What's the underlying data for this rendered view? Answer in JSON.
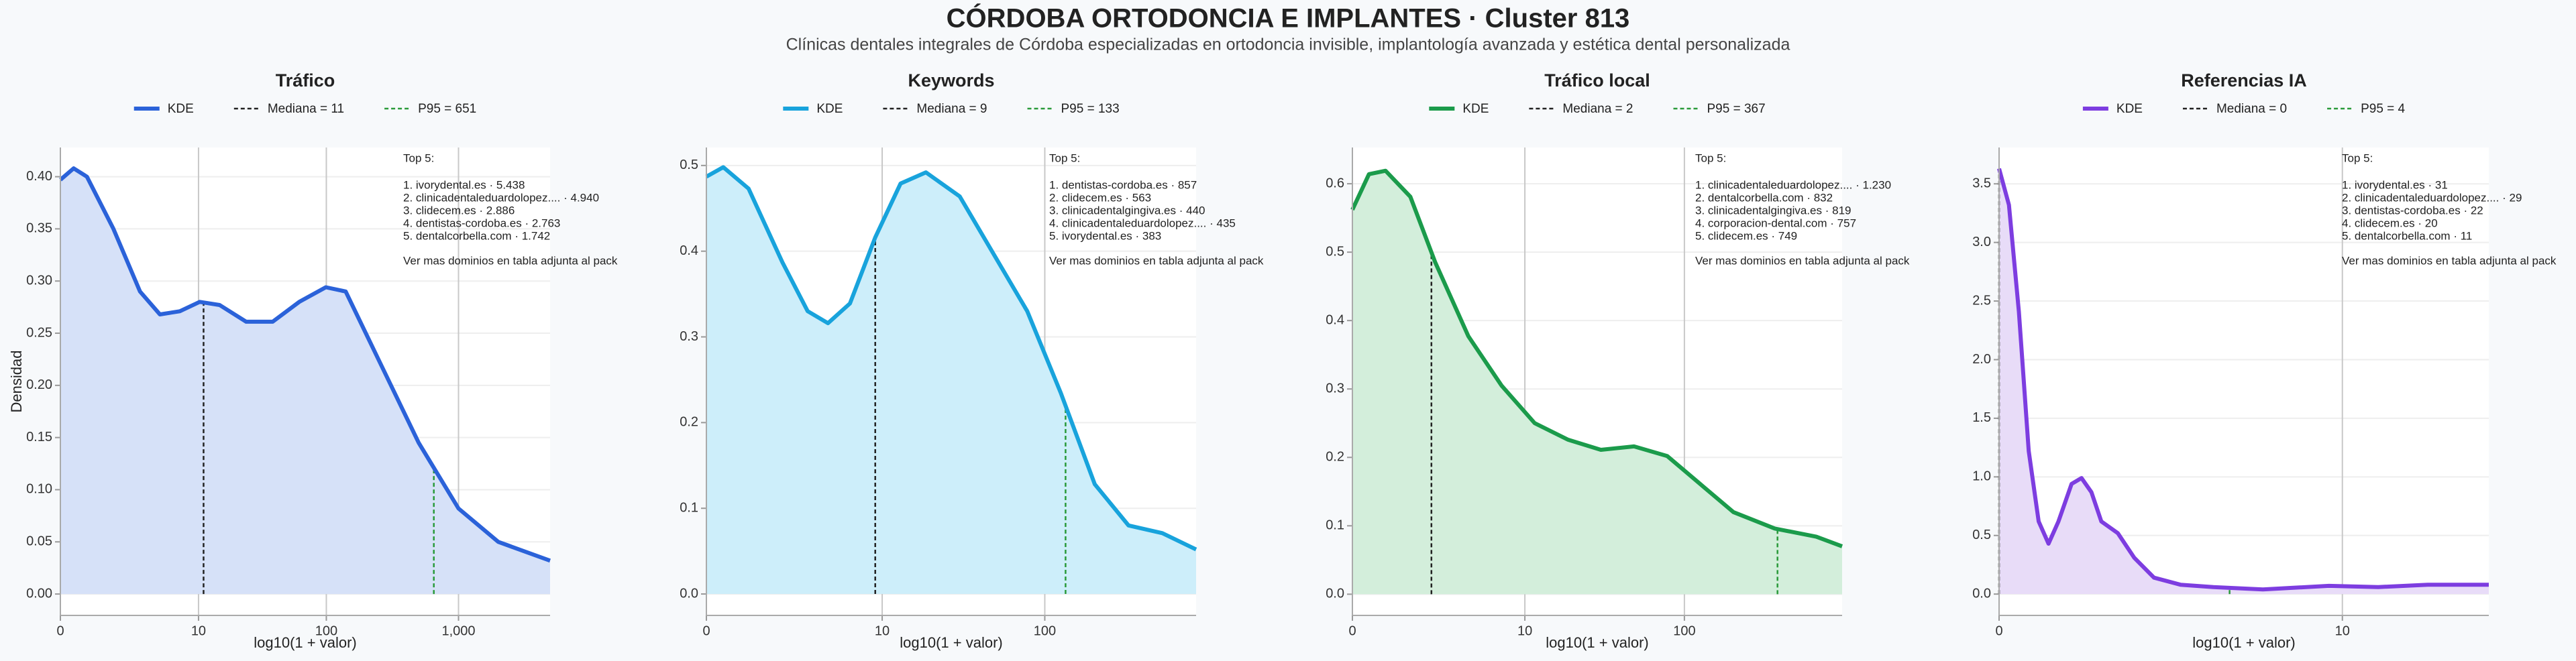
{
  "title": "CÓRDOBA ORTODONCIA E IMPLANTES · Cluster 813",
  "subtitle": "Clínicas dentales integrales de Córdoba especializadas en ortodoncia invisible, implantología avanzada y estética dental personalizada",
  "chart_data": [
    {
      "type": "area",
      "title": "Tráfico",
      "x_label": "log10(1 + valor)",
      "y_label": "Densidad",
      "grid": true,
      "fill_color": "#d6e1f8",
      "x": [
        0,
        0.1,
        0.2,
        0.4,
        0.6,
        0.75,
        0.9,
        1.05,
        1.2,
        1.4,
        1.6,
        1.8,
        2.0,
        2.15,
        2.4,
        2.7,
        3.0,
        3.3,
        3.69
      ],
      "series": [
        {
          "name": "KDE",
          "color": "#2b62d9",
          "values": [
            0.397,
            0.408,
            0.4,
            0.35,
            0.29,
            0.268,
            0.271,
            0.28,
            0.277,
            0.261,
            0.261,
            0.28,
            0.294,
            0.29,
            0.224,
            0.145,
            0.082,
            0.05,
            0.032
          ]
        }
      ],
      "reference_lines": [
        {
          "name": "Mediana = 11",
          "color": "#222222",
          "x": 1.079
        },
        {
          "name": "P95 = 651",
          "color": "#2a9a3a",
          "x": 2.814
        }
      ],
      "xlim": [
        0,
        3.69
      ],
      "ylim": [
        -0.0205,
        0.428
      ],
      "xticks": [
        0,
        {
          "value": 1.041,
          "label": "10"
        },
        {
          "value": 2.004,
          "label": "100"
        },
        {
          "value": 3.0,
          "label": "1,000"
        }
      ],
      "yticks": [
        {
          "value": 0,
          "label": "0.00"
        },
        0.05,
        {
          "value": 0.1,
          "label": "0.10"
        },
        0.15,
        {
          "value": 0.2,
          "label": "0.20"
        },
        0.25,
        {
          "value": 0.3,
          "label": "0.30"
        },
        0.35,
        {
          "value": 0.4,
          "label": "0.40"
        }
      ],
      "annotation": {
        "title": "Top 5:",
        "items": [
          "1. ivorydental.es · 5.438",
          "2. clinicadentaleduardolopez.... · 4.940",
          "3. clidecem.es · 2.886",
          "4. dentistas-cordoba.es · 2.763",
          "5. dentalcorbella.com · 1.742"
        ],
        "note": "Ver mas dominios en tabla adjunta al pack"
      }
    },
    {
      "type": "area",
      "title": "Keywords",
      "x_label": "log10(1 + valor)",
      "grid": true,
      "fill_color": "#cdeefa",
      "x": [
        0,
        0.1,
        0.25,
        0.45,
        0.6,
        0.72,
        0.85,
        1.0,
        1.15,
        1.3,
        1.5,
        1.7,
        1.9,
        2.1,
        2.3,
        2.5,
        2.7,
        2.9
      ],
      "series": [
        {
          "name": "KDE",
          "color": "#18a3dc",
          "values": [
            0.487,
            0.498,
            0.473,
            0.387,
            0.33,
            0.316,
            0.339,
            0.416,
            0.479,
            0.492,
            0.464,
            0.397,
            0.33,
            0.234,
            0.128,
            0.08,
            0.071,
            0.052
          ]
        }
      ],
      "reference_lines": [
        {
          "name": "Mediana = 9",
          "color": "#222222",
          "x": 1.0
        },
        {
          "name": "P95 = 133",
          "color": "#2a9a3a",
          "x": 2.127
        }
      ],
      "xlim": [
        0,
        2.9
      ],
      "ylim": [
        -0.025,
        0.521
      ],
      "xticks": [
        0,
        {
          "value": 1.041,
          "label": "10"
        },
        {
          "value": 2.004,
          "label": "100"
        }
      ],
      "yticks": [
        {
          "value": 0,
          "label": "0.0"
        },
        0.1,
        0.2,
        0.3,
        0.4,
        0.5
      ],
      "annotation": {
        "title": "Top 5:",
        "items": [
          "1. dentistas-cordoba.es · 857",
          "2. clidecem.es · 563",
          "3. clinicadentalgingiva.es · 440",
          "4. clinicadentaleduardolopez.... · 435",
          "5. ivorydental.es · 383"
        ],
        "note": "Ver mas dominios en tabla adjunta al pack"
      }
    },
    {
      "type": "area",
      "title": "Tráfico local",
      "x_label": "log10(1 + valor)",
      "grid": true,
      "fill_color": "#d3eedb",
      "x": [
        0,
        0.1,
        0.2,
        0.35,
        0.5,
        0.7,
        0.9,
        1.1,
        1.3,
        1.5,
        1.7,
        1.9,
        2.1,
        2.3,
        2.55,
        2.8,
        2.956
      ],
      "series": [
        {
          "name": "KDE",
          "color": "#1b9b4b",
          "values": [
            0.562,
            0.614,
            0.619,
            0.581,
            0.485,
            0.377,
            0.305,
            0.25,
            0.226,
            0.211,
            0.216,
            0.202,
            0.161,
            0.12,
            0.096,
            0.084,
            0.07
          ]
        }
      ],
      "reference_lines": [
        {
          "name": "Mediana = 2",
          "color": "#222222",
          "x": 0.477
        },
        {
          "name": "P95 = 367",
          "color": "#2a9a3a",
          "x": 2.566
        }
      ],
      "xlim": [
        0,
        2.956
      ],
      "ylim": [
        -0.031,
        0.653
      ],
      "xticks": [
        0,
        {
          "value": 1.041,
          "label": "10"
        },
        {
          "value": 2.004,
          "label": "100"
        }
      ],
      "yticks": [
        {
          "value": 0,
          "label": "0.0"
        },
        0.1,
        0.2,
        0.3,
        0.4,
        0.5,
        0.6
      ],
      "annotation": {
        "title": "Top 5:",
        "items": [
          "1. clinicadentaleduardolopez.... · 1.230",
          "2. dentalcorbella.com · 832",
          "3. clinicadentalgingiva.es · 819",
          "4. corporacion-dental.com · 757",
          "5. clidecem.es · 749"
        ],
        "note": "Ver mas dominios en tabla adjunta al pack"
      }
    },
    {
      "type": "area",
      "title": "Referencias IA",
      "x_label": "log10(1 + valor)",
      "grid": true,
      "fill_color": "#e8dcf8",
      "x": [
        0,
        0.03,
        0.06,
        0.09,
        0.12,
        0.15,
        0.18,
        0.22,
        0.25,
        0.28,
        0.31,
        0.36,
        0.41,
        0.47,
        0.55,
        0.65,
        0.8,
        1.0,
        1.15,
        1.3,
        1.485
      ],
      "series": [
        {
          "name": "KDE",
          "color": "#7d3de0",
          "values": [
            3.63,
            3.32,
            2.41,
            1.22,
            0.62,
            0.43,
            0.62,
            0.94,
            0.99,
            0.87,
            0.62,
            0.52,
            0.31,
            0.14,
            0.08,
            0.06,
            0.04,
            0.07,
            0.06,
            0.08,
            0.08
          ]
        }
      ],
      "reference_lines": [
        {
          "name": "Mediana = 0",
          "color": "#222222",
          "x": 0
        },
        {
          "name": "P95 = 4",
          "color": "#2a9a3a",
          "x": 0.699
        }
      ],
      "xlim": [
        0,
        1.485
      ],
      "ylim": [
        -0.182,
        3.81
      ],
      "xticks": [
        0,
        {
          "value": 1.041,
          "label": "10"
        }
      ],
      "yticks": [
        {
          "value": 0,
          "label": "0.0"
        },
        0.5,
        {
          "value": 1,
          "label": "1.0"
        },
        1.5,
        {
          "value": 2,
          "label": "2.0"
        },
        2.5,
        {
          "value": 3,
          "label": "3.0"
        },
        3.5
      ],
      "annotation": {
        "title": "Top 5:",
        "items": [
          "1. ivorydental.es · 31",
          "2. clinicadentaleduardolopez.... · 29",
          "3. dentistas-cordoba.es · 22",
          "4. clidecem.es · 20",
          "5. dentalcorbella.com · 11"
        ],
        "note": "Ver mas dominios en tabla adjunta al pack"
      }
    }
  ]
}
